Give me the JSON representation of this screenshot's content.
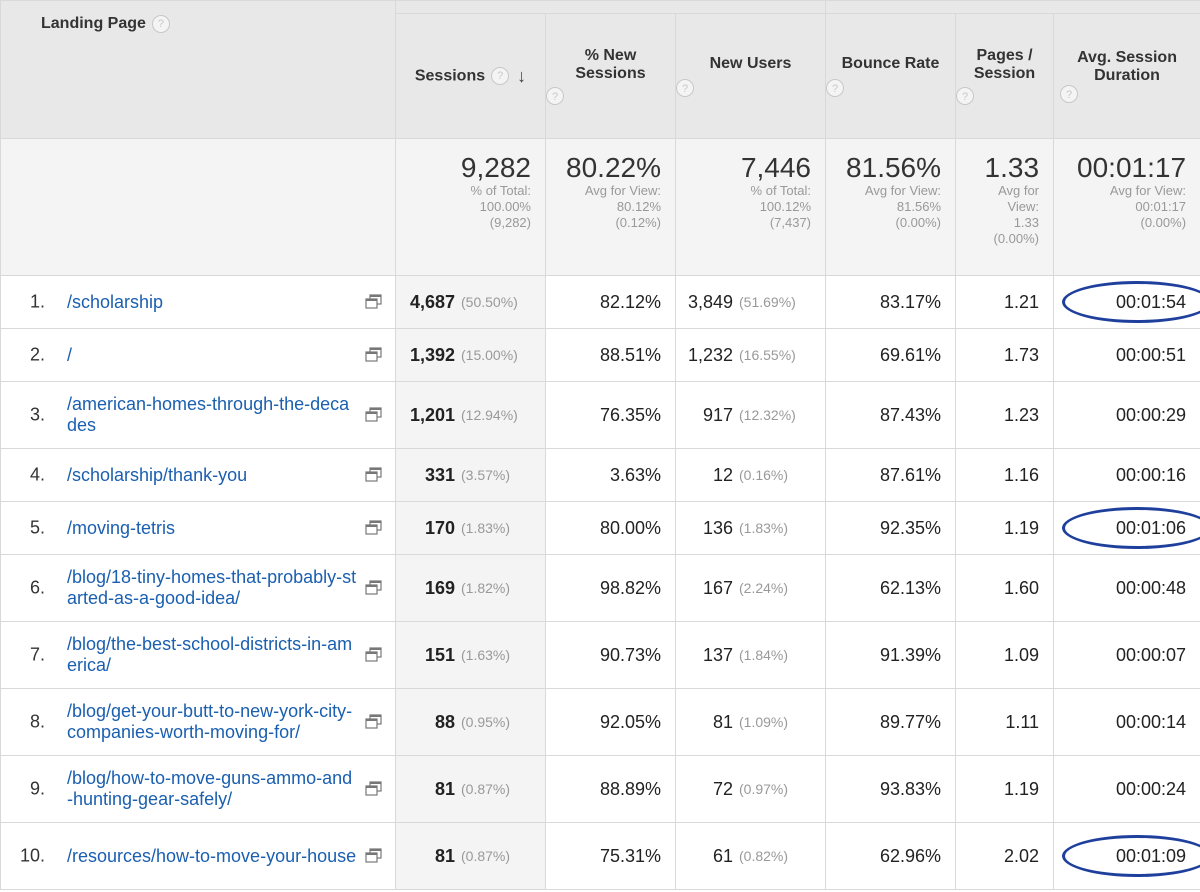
{
  "header": {
    "landing_page": "Landing Page",
    "sessions": "Sessions",
    "pct_new_sessions": [
      "% New",
      "Sessions"
    ],
    "new_users": "New Users",
    "bounce_rate": "Bounce Rate",
    "pages_session": [
      "Pages /",
      "Session"
    ],
    "avg_session_duration": [
      "Avg. Session",
      "Duration"
    ],
    "help_glyph": "?",
    "sort_glyph": "↓"
  },
  "totals": {
    "sessions": {
      "value": "9,282",
      "sub": [
        "% of Total:",
        "100.00%",
        "(9,282)"
      ]
    },
    "pct_new_sessions": {
      "value": "80.22%",
      "sub": [
        "Avg for View:",
        "80.12%",
        "(0.12%)"
      ]
    },
    "new_users": {
      "value": "7,446",
      "sub": [
        "% of Total:",
        "100.12%",
        "(7,437)"
      ]
    },
    "bounce_rate": {
      "value": "81.56%",
      "sub": [
        "Avg for View:",
        "81.56%",
        "(0.00%)"
      ]
    },
    "pages_session": {
      "value": "1.33",
      "sub": [
        "Avg for",
        "View:",
        "1.33",
        "(0.00%)"
      ]
    },
    "avg_session_duration": {
      "value": "00:01:17",
      "sub": [
        "Avg for View:",
        "00:01:17",
        "(0.00%)"
      ]
    }
  },
  "rows": [
    {
      "rank": "1.",
      "page": "/scholarship",
      "sessions": "4,687",
      "sessions_pct": "(50.50%)",
      "pct_new": "82.12%",
      "new_users": "3,849",
      "new_users_pct": "(51.69%)",
      "bounce": "83.17%",
      "pages": "1.21",
      "duration": "00:01:54",
      "circled": true
    },
    {
      "rank": "2.",
      "page": "/",
      "sessions": "1,392",
      "sessions_pct": "(15.00%)",
      "pct_new": "88.51%",
      "new_users": "1,232",
      "new_users_pct": "(16.55%)",
      "bounce": "69.61%",
      "pages": "1.73",
      "duration": "00:00:51",
      "circled": false
    },
    {
      "rank": "3.",
      "page": "/american-homes-through-the-decades",
      "sessions": "1,201",
      "sessions_pct": "(12.94%)",
      "pct_new": "76.35%",
      "new_users": "917",
      "new_users_pct": "(12.32%)",
      "bounce": "87.43%",
      "pages": "1.23",
      "duration": "00:00:29",
      "circled": false
    },
    {
      "rank": "4.",
      "page": "/scholarship/thank-you",
      "sessions": "331",
      "sessions_pct": "(3.57%)",
      "pct_new": "3.63%",
      "new_users": "12",
      "new_users_pct": "(0.16%)",
      "bounce": "87.61%",
      "pages": "1.16",
      "duration": "00:00:16",
      "circled": false
    },
    {
      "rank": "5.",
      "page": "/moving-tetris",
      "sessions": "170",
      "sessions_pct": "(1.83%)",
      "pct_new": "80.00%",
      "new_users": "136",
      "new_users_pct": "(1.83%)",
      "bounce": "92.35%",
      "pages": "1.19",
      "duration": "00:01:06",
      "circled": true
    },
    {
      "rank": "6.",
      "page": "/blog/18-tiny-homes-that-probably-started-as-a-good-idea/",
      "sessions": "169",
      "sessions_pct": "(1.82%)",
      "pct_new": "98.82%",
      "new_users": "167",
      "new_users_pct": "(2.24%)",
      "bounce": "62.13%",
      "pages": "1.60",
      "duration": "00:00:48",
      "circled": false
    },
    {
      "rank": "7.",
      "page": "/blog/the-best-school-districts-in-america/",
      "sessions": "151",
      "sessions_pct": "(1.63%)",
      "pct_new": "90.73%",
      "new_users": "137",
      "new_users_pct": "(1.84%)",
      "bounce": "91.39%",
      "pages": "1.09",
      "duration": "00:00:07",
      "circled": false
    },
    {
      "rank": "8.",
      "page": "/blog/get-your-butt-to-new-york-city-companies-worth-moving-for/",
      "sessions": "88",
      "sessions_pct": "(0.95%)",
      "pct_new": "92.05%",
      "new_users": "81",
      "new_users_pct": "(1.09%)",
      "bounce": "89.77%",
      "pages": "1.11",
      "duration": "00:00:14",
      "circled": false
    },
    {
      "rank": "9.",
      "page": "/blog/how-to-move-guns-ammo-and-hunting-gear-safely/",
      "sessions": "81",
      "sessions_pct": "(0.87%)",
      "pct_new": "88.89%",
      "new_users": "72",
      "new_users_pct": "(0.97%)",
      "bounce": "93.83%",
      "pages": "1.19",
      "duration": "00:00:24",
      "circled": false
    },
    {
      "rank": "10.",
      "page": "/resources/how-to-move-your-house",
      "sessions": "81",
      "sessions_pct": "(0.87%)",
      "pct_new": "75.31%",
      "new_users": "61",
      "new_users_pct": "(0.82%)",
      "bounce": "62.96%",
      "pages": "2.02",
      "duration": "00:01:09",
      "circled": true
    }
  ],
  "colors": {
    "link": "#1a5fb0",
    "circle": "#1f3f9c",
    "header_bg": "#e8e8e8",
    "muted": "#999999"
  }
}
